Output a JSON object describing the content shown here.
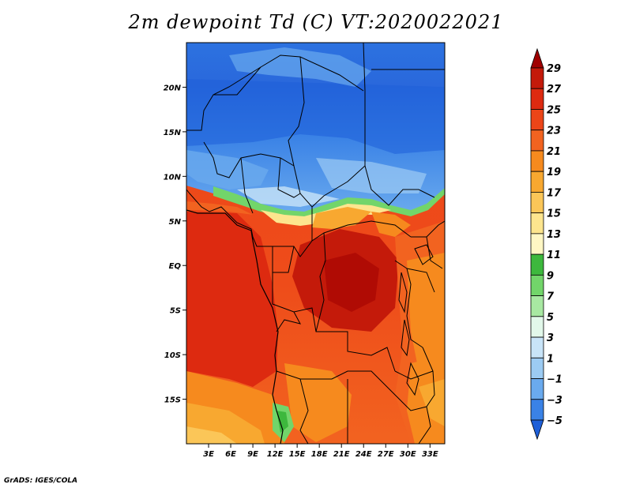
{
  "title": "2m dewpoint Td (C) VT:2020022021",
  "credit": "GrADS: IGES/COLA",
  "map": {
    "lon_range": [
      0,
      35
    ],
    "lat_range": [
      -20,
      25
    ],
    "lat_ticks": [
      {
        "value": 20,
        "label": "20N"
      },
      {
        "value": 15,
        "label": "15N"
      },
      {
        "value": 10,
        "label": "10N"
      },
      {
        "value": 5,
        "label": "5N"
      },
      {
        "value": 0,
        "label": "EQ"
      },
      {
        "value": -5,
        "label": "5S"
      },
      {
        "value": -10,
        "label": "10S"
      },
      {
        "value": -15,
        "label": "15S"
      }
    ],
    "lon_ticks": [
      {
        "value": 3,
        "label": "3E"
      },
      {
        "value": 6,
        "label": "6E"
      },
      {
        "value": 9,
        "label": "9E"
      },
      {
        "value": 12,
        "label": "12E"
      },
      {
        "value": 15,
        "label": "15E"
      },
      {
        "value": 18,
        "label": "18E"
      },
      {
        "value": 21,
        "label": "21E"
      },
      {
        "value": 24,
        "label": "24E"
      },
      {
        "value": 27,
        "label": "27E"
      },
      {
        "value": 30,
        "label": "30E"
      },
      {
        "value": 33,
        "label": "33E"
      }
    ]
  },
  "colorbar": {
    "labels": [
      "29",
      "27",
      "25",
      "23",
      "21",
      "19",
      "17",
      "15",
      "13",
      "11",
      "9",
      "7",
      "5",
      "3",
      "1",
      "−1",
      "−3",
      "−5"
    ],
    "colors": [
      "#a00000",
      "#c41a0a",
      "#dd2a10",
      "#ec4518",
      "#f26320",
      "#f68a1e",
      "#f8a830",
      "#fbc658",
      "#fde58e",
      "#fff7c4",
      "#3db83d",
      "#72d56a",
      "#a8e8a2",
      "#e2f8ea",
      "#c8e4f8",
      "#9ccbf3",
      "#6aaaee",
      "#3a82e6",
      "#1e5fd8"
    ]
  }
}
